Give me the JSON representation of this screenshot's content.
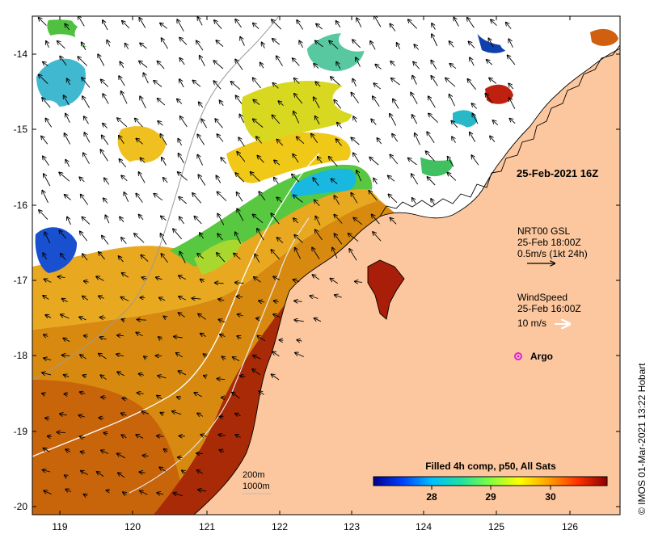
{
  "map": {
    "x_axis": {
      "ticks": [
        "119",
        "120",
        "121",
        "122",
        "123",
        "124",
        "125",
        "126"
      ]
    },
    "y_axis": {
      "ticks": [
        "-14",
        "-15",
        "-16",
        "-17",
        "-18",
        "-19",
        "-20"
      ]
    },
    "colors": {
      "land": "#fcc79e",
      "no_data": "#ffffff",
      "coast": "#000000",
      "frame": "#000000"
    }
  },
  "annotations": {
    "date_label": "25-Feb-2021 16Z",
    "current_title": "NRT00 GSL",
    "current_time": "25-Feb 18:00Z",
    "current_scale": "0.5m/s (1kt 24h)",
    "wind_title": "WindSpeed",
    "wind_time": "25-Feb 16:00Z",
    "wind_scale": "10 m/s",
    "argo_label": "Argo",
    "argo_color": "#e020e0",
    "isobath_200": "200m",
    "isobath_1000": "1000m",
    "credit": "© IMOS 01-Mar-2021 13:22 Hobart"
  },
  "colorbar": {
    "title": "Filled 4h comp, p50, All Sats",
    "ticks": [
      "28",
      "29",
      "30"
    ],
    "stops": [
      "#00008f",
      "#0040ff",
      "#00bfff",
      "#20e0a0",
      "#80ff40",
      "#ffff00",
      "#ffa000",
      "#ff3000",
      "#8f0000"
    ]
  }
}
